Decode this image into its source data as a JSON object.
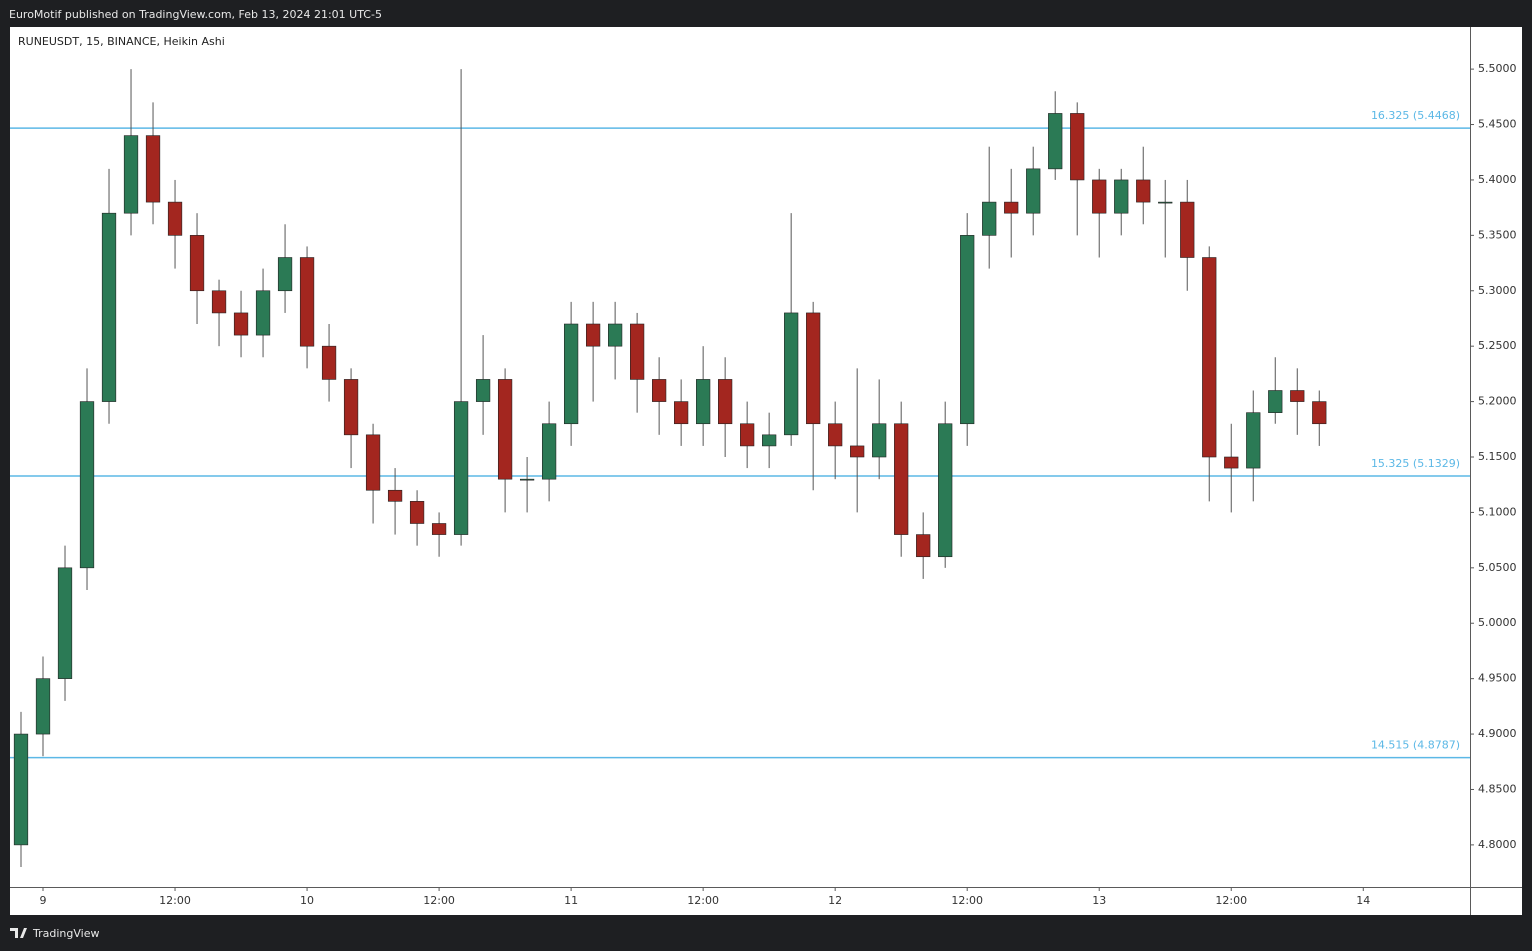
{
  "header": {
    "text": "EuroMotif published on TradingView.com, Feb 13, 2024 21:01 UTC-5"
  },
  "footer": {
    "brand": "TradingView"
  },
  "chart_data": {
    "type": "candlestick",
    "title": "RUNEUSDT, 15, BINANCE, Heikin Ashi",
    "x": [
      -2,
      0,
      2,
      4,
      6,
      8,
      10,
      12,
      14,
      16,
      18,
      20,
      22,
      24,
      26,
      28,
      30,
      32,
      34,
      36,
      38,
      40,
      42,
      44,
      46,
      48,
      50,
      52,
      54,
      56,
      58,
      60,
      62,
      64,
      66,
      68,
      70,
      72,
      74,
      76,
      78,
      80,
      82,
      84,
      86,
      88,
      90,
      92,
      94,
      96,
      98,
      100,
      102,
      104,
      106,
      108,
      110,
      112,
      114,
      116
    ],
    "open": [
      4.8,
      4.9,
      4.95,
      5.05,
      5.2,
      5.37,
      5.44,
      5.38,
      5.35,
      5.3,
      5.28,
      5.26,
      5.3,
      5.33,
      5.25,
      5.22,
      5.17,
      5.12,
      5.11,
      5.09,
      5.08,
      5.2,
      5.22,
      5.13,
      5.13,
      5.18,
      5.27,
      5.25,
      5.27,
      5.22,
      5.2,
      5.18,
      5.22,
      5.18,
      5.16,
      5.17,
      5.28,
      5.18,
      5.16,
      5.15,
      5.18,
      5.08,
      5.06,
      5.18,
      5.35,
      5.38,
      5.37,
      5.41,
      5.46,
      5.4,
      5.37,
      5.4,
      5.38,
      5.38,
      5.33,
      5.15,
      5.14,
      5.19,
      5.21,
      5.2
    ],
    "high": [
      4.92,
      4.97,
      5.07,
      5.23,
      5.41,
      5.5,
      5.47,
      5.4,
      5.37,
      5.31,
      5.3,
      5.32,
      5.36,
      5.34,
      5.27,
      5.23,
      5.18,
      5.14,
      5.12,
      5.1,
      5.5,
      5.26,
      5.23,
      5.15,
      5.2,
      5.29,
      5.29,
      5.29,
      5.28,
      5.24,
      5.22,
      5.25,
      5.24,
      5.2,
      5.19,
      5.37,
      5.29,
      5.2,
      5.23,
      5.22,
      5.2,
      5.1,
      5.2,
      5.37,
      5.43,
      5.41,
      5.43,
      5.48,
      5.47,
      5.41,
      5.41,
      5.43,
      5.4,
      5.4,
      5.34,
      5.18,
      5.21,
      5.24,
      5.23,
      5.21
    ],
    "low": [
      4.78,
      4.88,
      4.93,
      5.03,
      5.18,
      5.35,
      5.36,
      5.32,
      5.27,
      5.25,
      5.24,
      5.24,
      5.28,
      5.23,
      5.2,
      5.14,
      5.09,
      5.08,
      5.07,
      5.06,
      5.07,
      5.17,
      5.1,
      5.1,
      5.11,
      5.16,
      5.2,
      5.22,
      5.19,
      5.17,
      5.16,
      5.16,
      5.15,
      5.14,
      5.14,
      5.16,
      5.12,
      5.13,
      5.1,
      5.13,
      5.06,
      5.04,
      5.05,
      5.16,
      5.32,
      5.33,
      5.35,
      5.4,
      5.35,
      5.33,
      5.35,
      5.36,
      5.33,
      5.3,
      5.11,
      5.1,
      5.11,
      5.18,
      5.17,
      5.16
    ],
    "close": [
      4.9,
      4.95,
      5.05,
      5.2,
      5.37,
      5.44,
      5.38,
      5.35,
      5.3,
      5.28,
      5.26,
      5.3,
      5.33,
      5.25,
      5.22,
      5.17,
      5.12,
      5.11,
      5.09,
      5.08,
      5.2,
      5.22,
      5.13,
      5.13,
      5.18,
      5.27,
      5.25,
      5.27,
      5.22,
      5.2,
      5.18,
      5.22,
      5.18,
      5.16,
      5.17,
      5.28,
      5.18,
      5.16,
      5.15,
      5.18,
      5.08,
      5.06,
      5.18,
      5.35,
      5.38,
      5.37,
      5.41,
      5.46,
      5.4,
      5.37,
      5.4,
      5.38,
      5.38,
      5.33,
      5.15,
      5.14,
      5.19,
      5.21,
      5.2,
      5.18
    ],
    "up_color": "#2b7a55",
    "down_color": "#a3261f",
    "xlim": [
      -3,
      129.7
    ],
    "xticks": [
      {
        "value": 0,
        "label": "9"
      },
      {
        "value": 12,
        "label": "12:00"
      },
      {
        "value": 24,
        "label": "10"
      },
      {
        "value": 36,
        "label": "12:00"
      },
      {
        "value": 48,
        "label": "11"
      },
      {
        "value": 60,
        "label": "12:00"
      },
      {
        "value": 72,
        "label": "12"
      },
      {
        "value": 84,
        "label": "12:00"
      },
      {
        "value": 96,
        "label": "13"
      },
      {
        "value": 108,
        "label": "12:00"
      },
      {
        "value": 120,
        "label": "14"
      }
    ],
    "ylim": [
      4.762,
      5.538
    ],
    "yticks": [
      {
        "value": 4.8,
        "label": "4.8000"
      },
      {
        "value": 4.85,
        "label": "4.8500"
      },
      {
        "value": 4.9,
        "label": "4.9000"
      },
      {
        "value": 4.95,
        "label": "4.9500"
      },
      {
        "value": 5.0,
        "label": "5.0000"
      },
      {
        "value": 5.05,
        "label": "5.0500"
      },
      {
        "value": 5.1,
        "label": "5.1000"
      },
      {
        "value": 5.15,
        "label": "5.1500"
      },
      {
        "value": 5.2,
        "label": "5.2000"
      },
      {
        "value": 5.25,
        "label": "5.2500"
      },
      {
        "value": 5.3,
        "label": "5.3000"
      },
      {
        "value": 5.35,
        "label": "5.3500"
      },
      {
        "value": 5.4,
        "label": "5.4000"
      },
      {
        "value": 5.45,
        "label": "5.4500"
      },
      {
        "value": 5.5,
        "label": "5.5000"
      }
    ],
    "hlines": [
      {
        "value": 5.4468,
        "label": "16.325 (5.4468)"
      },
      {
        "value": 5.1329,
        "label": "15.325 (5.1329)"
      },
      {
        "value": 4.8787,
        "label": "14.515 (4.8787)"
      }
    ],
    "hline_color": "#5cb8e6"
  }
}
